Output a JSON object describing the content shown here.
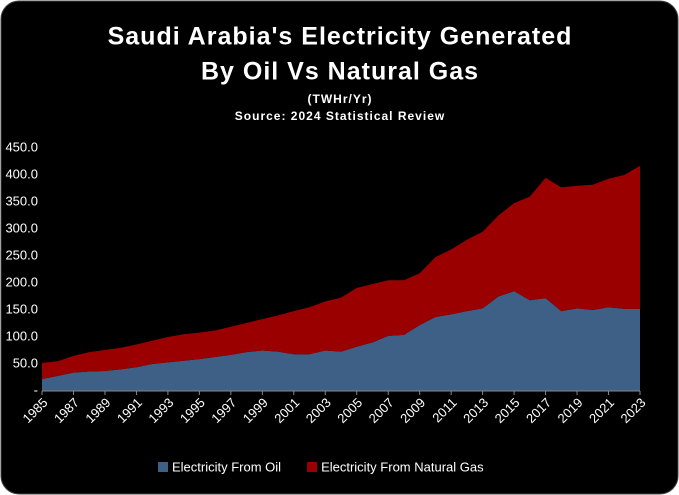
{
  "chart_data": {
    "type": "stacked-area",
    "title": [
      "Saudi Arabia's Electricity Generated",
      "By Oil Vs Natural Gas"
    ],
    "subtitle": [
      "(TWHr/Yr)",
      "Source: 2024 Statistical Review"
    ],
    "x": [
      1985,
      1986,
      1987,
      1988,
      1989,
      1990,
      1991,
      1992,
      1993,
      1994,
      1995,
      1996,
      1997,
      1998,
      1999,
      2000,
      2001,
      2002,
      2003,
      2004,
      2005,
      2006,
      2007,
      2008,
      2009,
      2010,
      2011,
      2012,
      2013,
      2014,
      2015,
      2016,
      2017,
      2018,
      2019,
      2020,
      2021,
      2022,
      2023
    ],
    "xlim": [
      1985,
      2023
    ],
    "xticks": [
      1985,
      1987,
      1989,
      1991,
      1993,
      1995,
      1997,
      1999,
      2001,
      2003,
      2005,
      2007,
      2009,
      2011,
      2013,
      2015,
      2017,
      2019,
      2021,
      2023
    ],
    "series": [
      {
        "name": "Electricity From Oil",
        "color": "#3e5f86",
        "values": [
          22,
          28,
          34,
          36,
          37,
          40,
          44,
          50,
          53,
          56,
          59,
          63,
          67,
          72,
          75,
          73,
          68,
          68,
          75,
          73,
          82,
          90,
          102,
          104,
          122,
          137,
          142,
          148,
          153,
          175,
          185,
          168,
          172,
          148,
          153,
          150,
          155,
          152,
          152
        ]
      },
      {
        "name": "Electricity From Natural Gas",
        "color": "#9a0000",
        "values": [
          30,
          27,
          31,
          36,
          39,
          40,
          42,
          43,
          47,
          49,
          49,
          49,
          52,
          54,
          58,
          67,
          80,
          87,
          91,
          100,
          109,
          108,
          103,
          101,
          96,
          111,
          120,
          132,
          142,
          150,
          163,
          192,
          223,
          229,
          227,
          232,
          238,
          248,
          265
        ]
      }
    ],
    "ylim": [
      0,
      450
    ],
    "yticks": [
      {
        "value": 0,
        "label": "-"
      },
      {
        "value": 50,
        "label": "50.0"
      },
      {
        "value": 100,
        "label": "100.0"
      },
      {
        "value": 150,
        "label": "150.0"
      },
      {
        "value": 200,
        "label": "200.0"
      },
      {
        "value": 250,
        "label": "250.0"
      },
      {
        "value": 300,
        "label": "300.0"
      },
      {
        "value": 350,
        "label": "350.0"
      },
      {
        "value": 400,
        "label": "400.0"
      },
      {
        "value": 450,
        "label": "450.0"
      }
    ],
    "grid": false,
    "legend": "bottom"
  }
}
